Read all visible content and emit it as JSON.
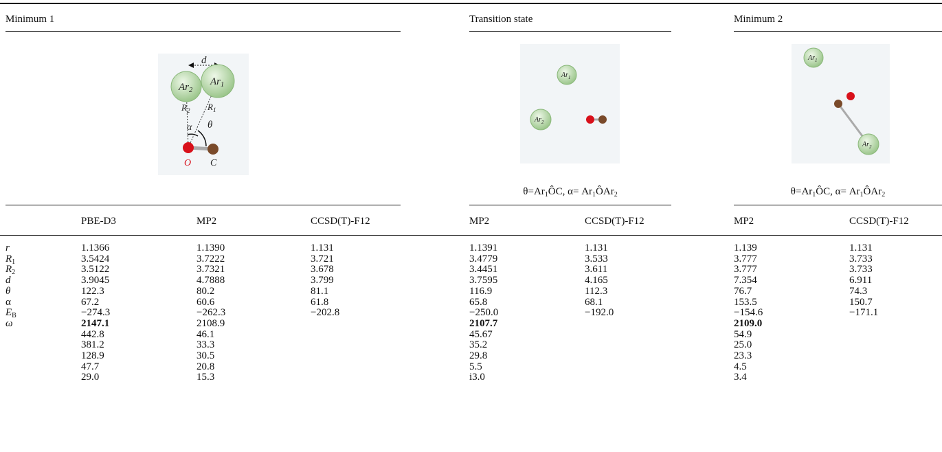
{
  "sections": [
    {
      "title": "Minimum 1",
      "columns": [
        "PBE-D3",
        "MP2",
        "CCSD(T)-F12"
      ],
      "figure_labels": [
        {
          "symbol": "Ar",
          "sub": "2"
        },
        {
          "symbol": "Ar",
          "sub": "1"
        },
        {
          "symbol": "d"
        },
        {
          "symbol": "R",
          "sub": "2"
        },
        {
          "symbol": "R",
          "sub": "1"
        },
        {
          "symbol": "α"
        },
        {
          "symbol": "θ"
        },
        {
          "symbol": "O"
        },
        {
          "symbol": "C"
        }
      ],
      "rows": [
        [
          "1.1366",
          "1.1390",
          "1.131"
        ],
        [
          "3.5424",
          "3.7222",
          "3.721"
        ],
        [
          "3.5122",
          "3.7321",
          "3.678"
        ],
        [
          "3.9045",
          "4.7888",
          "3.799"
        ],
        [
          "122.3",
          "80.2",
          "81.1"
        ],
        [
          "67.2",
          "60.6",
          "61.8"
        ],
        [
          "−274.3",
          "−262.3",
          "−202.8"
        ],
        [
          "2147.1",
          "2108.9"
        ],
        [
          "442.8",
          "46.1"
        ],
        [
          "381.2",
          "33.3"
        ],
        [
          "128.9",
          "30.5"
        ],
        [
          "47.7",
          "20.8"
        ],
        [
          "29.0",
          "15.3"
        ]
      ]
    },
    {
      "title": "Transition state",
      "columns": [
        "MP2",
        "CCSD(T)-F12"
      ],
      "figure_labels": [
        {
          "symbol": "Ar",
          "sub": "1"
        },
        {
          "symbol": "Ar",
          "sub": "2"
        }
      ],
      "caption": [
        "θ=Ar",
        "1",
        "ÔC, α= Ar",
        "1",
        "ÔAr",
        "2"
      ],
      "rows": [
        [
          "1.1391",
          "1.131"
        ],
        [
          "3.4779",
          "3.533"
        ],
        [
          "3.4451",
          "3.611"
        ],
        [
          "3.7595",
          "4.165"
        ],
        [
          "116.9",
          "112.3"
        ],
        [
          "65.8",
          "68.1"
        ],
        [
          "−250.0",
          "−192.0"
        ],
        [
          "2107.7"
        ],
        [
          "45.67"
        ],
        [
          "35.2"
        ],
        [
          "29.8"
        ],
        [
          "5.5"
        ],
        [
          "i3.0"
        ]
      ]
    },
    {
      "title": "Minimum 2",
      "columns": [
        "MP2",
        "CCSD(T)-F12"
      ],
      "figure_labels": [
        {
          "symbol": "Ar",
          "sub": "1"
        },
        {
          "symbol": "Ar",
          "sub": "2"
        }
      ],
      "caption": [
        "θ=Ar",
        "1",
        "ÔC, α= Ar",
        "1",
        "ÔAr",
        "2"
      ],
      "rows": [
        [
          "1.139",
          "1.131"
        ],
        [
          "3.777",
          "3.733"
        ],
        [
          "3.777",
          "3.733"
        ],
        [
          "7.354",
          "6.911"
        ],
        [
          "76.7",
          "74.3"
        ],
        [
          "153.5",
          "150.7"
        ],
        [
          "−154.6",
          "−171.1"
        ],
        [
          "2109.0"
        ],
        [
          "54.9"
        ],
        [
          "25.0"
        ],
        [
          "23.3"
        ],
        [
          "4.5"
        ],
        [
          "3.4"
        ]
      ]
    }
  ],
  "row_labels": [
    {
      "symbol": "r"
    },
    {
      "symbol": "R",
      "sub": "1"
    },
    {
      "symbol": "R",
      "sub": "2"
    },
    {
      "symbol": "d"
    },
    {
      "symbol": "θ"
    },
    {
      "symbol": "α"
    },
    {
      "symbol": "E",
      "sub": "B"
    },
    {
      "symbol": "ω"
    }
  ]
}
